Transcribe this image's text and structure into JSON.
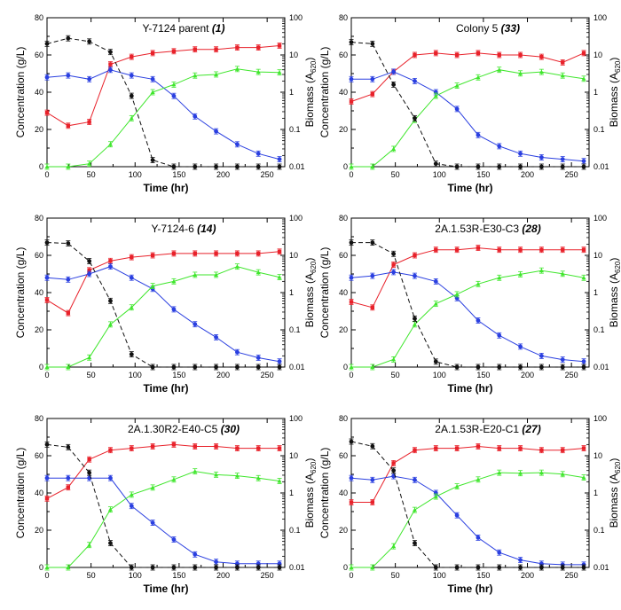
{
  "colors": {
    "black": "#111111",
    "red": "#e8212a",
    "blue": "#2a3fe0",
    "green": "#3ee62b",
    "axis": "#000000"
  },
  "axes": {
    "ylabel": "Concentration (g/L)",
    "xlabel": "Time (hr)",
    "y2label_prefix": "Biomass (A",
    "y2label_sub": "620",
    "y2label_suffix": ")",
    "xticks": [
      "0",
      "50",
      "100",
      "150",
      "200",
      "250"
    ],
    "yticks": [
      "0",
      "20",
      "40",
      "60",
      "80"
    ],
    "y2ticks": [
      "0.01",
      "0.1",
      "1",
      "10",
      "100"
    ]
  },
  "chart_data": [
    {
      "type": "line",
      "title": "Y-7124 parent",
      "title_num": "(1)",
      "xlim": [
        0,
        270
      ],
      "ylim": [
        0,
        80
      ],
      "y2lim": [
        0.01,
        100
      ],
      "y2scale": "log",
      "x": [
        0,
        24,
        48,
        72,
        96,
        120,
        144,
        168,
        192,
        216,
        240,
        264
      ],
      "series": [
        {
          "name": "",
          "color": "red",
          "axis": "left",
          "values": [
            29,
            22,
            24,
            55,
            59,
            61,
            62,
            63,
            63,
            64,
            64,
            65
          ]
        },
        {
          "name": "",
          "color": "blue",
          "axis": "left",
          "values": [
            48,
            49,
            47,
            52,
            49,
            47,
            38,
            27,
            19,
            12,
            7,
            4
          ]
        },
        {
          "name": "",
          "color": "green",
          "axis": "right",
          "values": [
            0.01,
            0.01,
            0.012,
            0.04,
            0.2,
            1.0,
            1.6,
            2.8,
            3.0,
            4.2,
            3.5,
            3.4
          ]
        },
        {
          "name": "",
          "color": "black",
          "axis": "right",
          "dashed": true,
          "values": [
            20,
            28,
            23,
            12,
            0.8,
            0.015,
            0.01,
            0.01,
            0.01,
            0.01,
            0.01,
            0.01
          ]
        }
      ]
    },
    {
      "type": "line",
      "title": "Colony 5",
      "title_num": "(33)",
      "xlim": [
        0,
        270
      ],
      "ylim": [
        0,
        80
      ],
      "y2lim": [
        0.01,
        100
      ],
      "y2scale": "log",
      "x": [
        0,
        24,
        48,
        72,
        96,
        120,
        144,
        168,
        192,
        216,
        240,
        264
      ],
      "series": [
        {
          "name": "",
          "color": "red",
          "axis": "left",
          "values": [
            35,
            39,
            51,
            60,
            61,
            60,
            61,
            60,
            60,
            59,
            56,
            61
          ]
        },
        {
          "name": "",
          "color": "blue",
          "axis": "left",
          "values": [
            47,
            47,
            51,
            46,
            40,
            31,
            17,
            11,
            7,
            5,
            4,
            3
          ]
        },
        {
          "name": "",
          "color": "green",
          "axis": "right",
          "values": [
            0.01,
            0.01,
            0.03,
            0.18,
            0.8,
            1.5,
            2.5,
            4.0,
            3.2,
            3.5,
            2.8,
            2.3
          ]
        },
        {
          "name": "",
          "color": "black",
          "axis": "right",
          "dashed": true,
          "values": [
            22,
            20,
            1.6,
            0.2,
            0.012,
            0.01,
            0.01,
            0.01,
            0.01,
            0.01,
            0.01,
            0.01
          ]
        }
      ]
    },
    {
      "type": "line",
      "title": "Y-7124-6",
      "title_num": "(14)",
      "xlim": [
        0,
        270
      ],
      "ylim": [
        0,
        80
      ],
      "y2lim": [
        0.01,
        100
      ],
      "y2scale": "log",
      "x": [
        0,
        24,
        48,
        72,
        96,
        120,
        144,
        168,
        192,
        216,
        240,
        264
      ],
      "series": [
        {
          "name": "",
          "color": "red",
          "axis": "left",
          "values": [
            36,
            29,
            52,
            57,
            59,
            60,
            61,
            61,
            61,
            61,
            61,
            62
          ]
        },
        {
          "name": "",
          "color": "blue",
          "axis": "left",
          "values": [
            48,
            47,
            50,
            54,
            48,
            42,
            31,
            23,
            16,
            8,
            5,
            3
          ]
        },
        {
          "name": "",
          "color": "green",
          "axis": "right",
          "values": [
            0.01,
            0.01,
            0.018,
            0.14,
            0.4,
            1.5,
            2.0,
            3.0,
            3.0,
            5.0,
            3.5,
            2.6
          ]
        },
        {
          "name": "",
          "color": "black",
          "axis": "right",
          "dashed": true,
          "values": [
            22,
            21,
            7,
            0.6,
            0.022,
            0.01,
            0.01,
            0.01,
            0.01,
            0.01,
            0.01,
            0.01
          ]
        }
      ]
    },
    {
      "type": "line",
      "title": "2A.1.53R-E30-C3",
      "title_num": "(28)",
      "xlim": [
        0,
        270
      ],
      "ylim": [
        0,
        80
      ],
      "y2lim": [
        0.01,
        100
      ],
      "y2scale": "log",
      "x": [
        0,
        24,
        48,
        72,
        96,
        120,
        144,
        168,
        192,
        216,
        240,
        264
      ],
      "series": [
        {
          "name": "",
          "color": "red",
          "axis": "left",
          "values": [
            35,
            32,
            55,
            60,
            63,
            63,
            64,
            63,
            63,
            63,
            63,
            63
          ]
        },
        {
          "name": "",
          "color": "blue",
          "axis": "left",
          "values": [
            48,
            49,
            51,
            49,
            46,
            37,
            25,
            17,
            11,
            6,
            4,
            3
          ]
        },
        {
          "name": "",
          "color": "green",
          "axis": "right",
          "values": [
            0.01,
            0.01,
            0.016,
            0.14,
            0.5,
            0.9,
            1.7,
            2.5,
            3.1,
            3.9,
            3.2,
            2.5
          ]
        },
        {
          "name": "",
          "color": "black",
          "axis": "right",
          "dashed": true,
          "values": [
            22,
            22,
            11,
            0.2,
            0.014,
            0.01,
            0.01,
            0.01,
            0.01,
            0.01,
            0.01,
            0.01
          ]
        }
      ]
    },
    {
      "type": "line",
      "title": "2A.1.30R2-E40-C5",
      "title_num": "(30)",
      "xlim": [
        0,
        270
      ],
      "ylim": [
        0,
        80
      ],
      "y2lim": [
        0.01,
        100
      ],
      "y2scale": "log",
      "x": [
        0,
        24,
        48,
        72,
        96,
        120,
        144,
        168,
        192,
        216,
        240,
        264
      ],
      "series": [
        {
          "name": "",
          "color": "red",
          "axis": "left",
          "values": [
            37,
            43,
            58,
            63,
            64,
            65,
            66,
            65,
            65,
            64,
            64,
            64
          ]
        },
        {
          "name": "",
          "color": "blue",
          "axis": "left",
          "values": [
            48,
            48,
            48,
            48,
            33,
            24,
            15,
            7,
            3,
            2,
            2,
            2
          ]
        },
        {
          "name": "",
          "color": "green",
          "axis": "right",
          "values": [
            0.01,
            0.01,
            0.04,
            0.36,
            0.9,
            1.4,
            2.3,
            3.8,
            3.1,
            2.9,
            2.5,
            2.1
          ]
        },
        {
          "name": "",
          "color": "black",
          "axis": "right",
          "dashed": true,
          "values": [
            20,
            17,
            3.5,
            0.045,
            0.01,
            0.01,
            0.01,
            0.01,
            0.01,
            0.01,
            0.01,
            0.01
          ]
        }
      ]
    },
    {
      "type": "line",
      "title": "2A.1.53R-E20-C1",
      "title_num": "(27)",
      "xlim": [
        0,
        270
      ],
      "ylim": [
        0,
        80
      ],
      "y2lim": [
        0.01,
        100
      ],
      "y2scale": "log",
      "x": [
        0,
        24,
        48,
        72,
        96,
        120,
        144,
        168,
        192,
        216,
        240,
        264
      ],
      "series": [
        {
          "name": "",
          "color": "red",
          "axis": "left",
          "values": [
            35,
            35,
            56,
            63,
            64,
            64,
            65,
            64,
            64,
            63,
            63,
            64
          ]
        },
        {
          "name": "",
          "color": "blue",
          "axis": "left",
          "values": [
            48,
            47,
            49,
            47,
            40,
            28,
            16,
            8,
            4,
            2,
            1.5,
            1.5
          ]
        },
        {
          "name": "",
          "color": "green",
          "axis": "right",
          "values": [
            0.01,
            0.01,
            0.037,
            0.35,
            0.8,
            1.5,
            2.3,
            3.5,
            3.4,
            3.5,
            3.2,
            2.6
          ]
        },
        {
          "name": "",
          "color": "black",
          "axis": "right",
          "dashed": true,
          "values": [
            24,
            18,
            4.0,
            0.045,
            0.01,
            0.01,
            0.01,
            0.01,
            0.01,
            0.01,
            0.01,
            0.01
          ]
        }
      ]
    }
  ]
}
